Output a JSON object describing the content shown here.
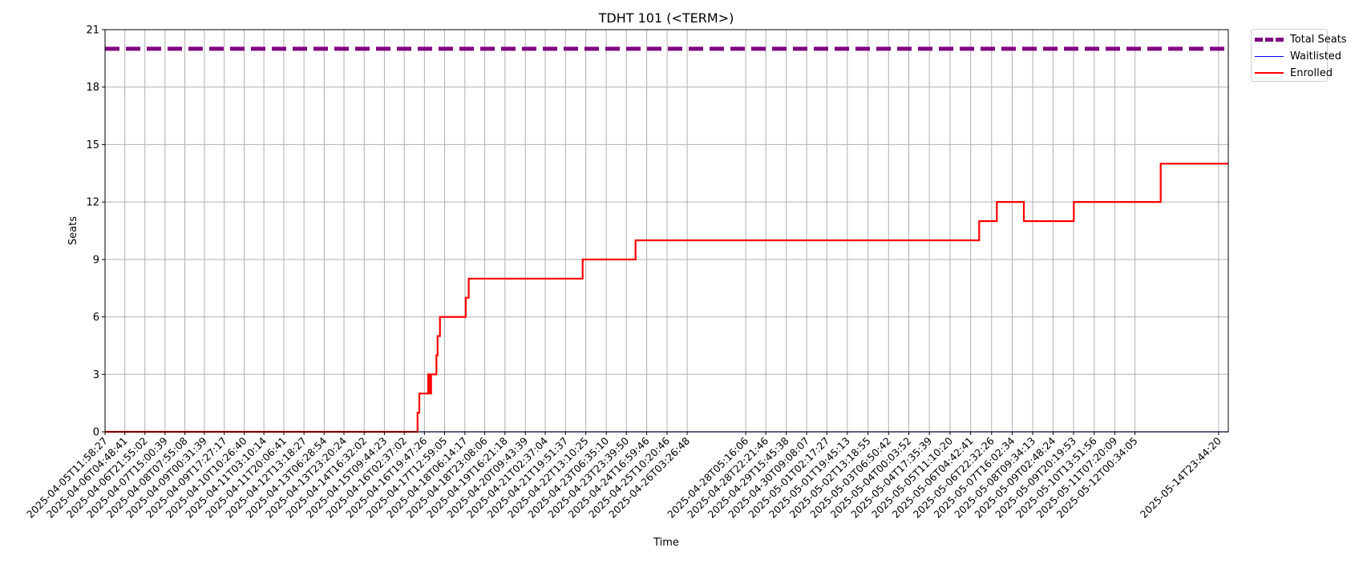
{
  "chart_data": {
    "type": "line",
    "title": "TDHT 101 (<TERM>)",
    "xlabel": "Time",
    "ylabel": "Seats",
    "x_range": [
      "2025-04-05T11:58:27",
      "2025-05-15T08:00:00"
    ],
    "ylim": [
      0,
      21
    ],
    "yticks": [
      0,
      3,
      6,
      9,
      12,
      15,
      18,
      21
    ],
    "grid": true,
    "legend_placement": "outside upper right",
    "xtick_labels": [
      "2025-04-05T11:58:27",
      "2025-04-06T04:48:41",
      "2025-04-06T21:55:02",
      "2025-04-07T15:00:39",
      "2025-04-08T07:55:08",
      "2025-04-09T00:31:39",
      "2025-04-09T17:27:17",
      "2025-04-10T10:26:40",
      "2025-04-11T03:10:14",
      "2025-04-11T20:06:41",
      "2025-04-12T13:18:27",
      "2025-04-13T06:28:54",
      "2025-04-13T23:20:24",
      "2025-04-14T16:32:02",
      "2025-04-15T09:44:23",
      "2025-04-16T02:37:02",
      "2025-04-16T19:47:26",
      "2025-04-17T12:59:05",
      "2025-04-18T06:14:17",
      "2025-04-18T23:08:06",
      "2025-04-19T16:21:18",
      "2025-04-20T09:43:39",
      "2025-04-21T02:37:04",
      "2025-04-21T19:51:37",
      "2025-04-22T13:10:25",
      "2025-04-23T06:35:10",
      "2025-04-23T23:39:50",
      "2025-04-24T16:59:46",
      "2025-04-25T10:20:46",
      "2025-04-26T03:26:48",
      "2025-04-28T05:16:06",
      "2025-04-28T22:21:46",
      "2025-04-29T15:45:38",
      "2025-04-30T09:08:07",
      "2025-05-01T02:17:27",
      "2025-05-01T19:45:13",
      "2025-05-02T13:18:55",
      "2025-05-03T06:50:42",
      "2025-05-04T00:03:52",
      "2025-05-04T17:35:39",
      "2025-05-05T11:10:20",
      "2025-05-06T04:42:41",
      "2025-05-06T22:32:26",
      "2025-05-07T16:02:34",
      "2025-05-08T09:34:13",
      "2025-05-09T02:48:24",
      "2025-05-09T20:19:53",
      "2025-05-10T13:51:56",
      "2025-05-11T07:20:09",
      "2025-05-12T00:34:05",
      "2025-05-14T23:44:20"
    ],
    "series": [
      {
        "name": "Total Seats",
        "color": "#800080",
        "style": "dashed",
        "x": [
          "2025-04-05T11:58:27",
          "2025-05-15T08:00:00"
        ],
        "values": [
          20,
          20
        ]
      },
      {
        "name": "Waitlisted",
        "color": "#0000ff",
        "style": "solid",
        "x": [
          "2025-04-05T11:58:27",
          "2025-05-15T08:00:00"
        ],
        "values": [
          0,
          0
        ]
      },
      {
        "name": "Enrolled",
        "color": "#ff0000",
        "style": "step",
        "x": [
          "2025-04-05T11:58:27",
          "2025-04-16T14:00:00",
          "2025-04-16T15:30:00",
          "2025-04-16T17:00:00",
          "2025-04-16T23:00:00",
          "2025-04-17T00:30:00",
          "2025-04-17T01:30:00",
          "2025-04-17T05:30:00",
          "2025-04-17T06:00:00",
          "2025-04-17T07:00:00",
          "2025-04-17T07:40:00",
          "2025-04-17T09:00:00",
          "2025-04-18T05:00:00",
          "2025-04-18T07:00:00",
          "2025-04-18T08:30:00",
          "2025-04-18T09:30:00",
          "2025-04-20T15:00:00",
          "2025-04-22T10:30:00",
          "2025-04-24T07:30:00",
          "2025-04-30T05:00:00",
          "2025-05-06T12:00:00",
          "2025-05-07T03:00:00",
          "2025-05-08T02:00:00",
          "2025-05-08T04:30:00",
          "2025-05-09T20:30:00",
          "2025-05-12T22:30:00",
          "2025-05-15T08:00:00"
        ],
        "values": [
          0,
          1,
          2,
          2,
          3,
          2,
          3,
          3,
          4,
          5,
          5,
          6,
          6,
          7,
          7,
          8,
          8,
          9,
          10,
          10,
          11,
          12,
          11,
          11,
          12,
          14,
          14
        ]
      }
    ]
  }
}
